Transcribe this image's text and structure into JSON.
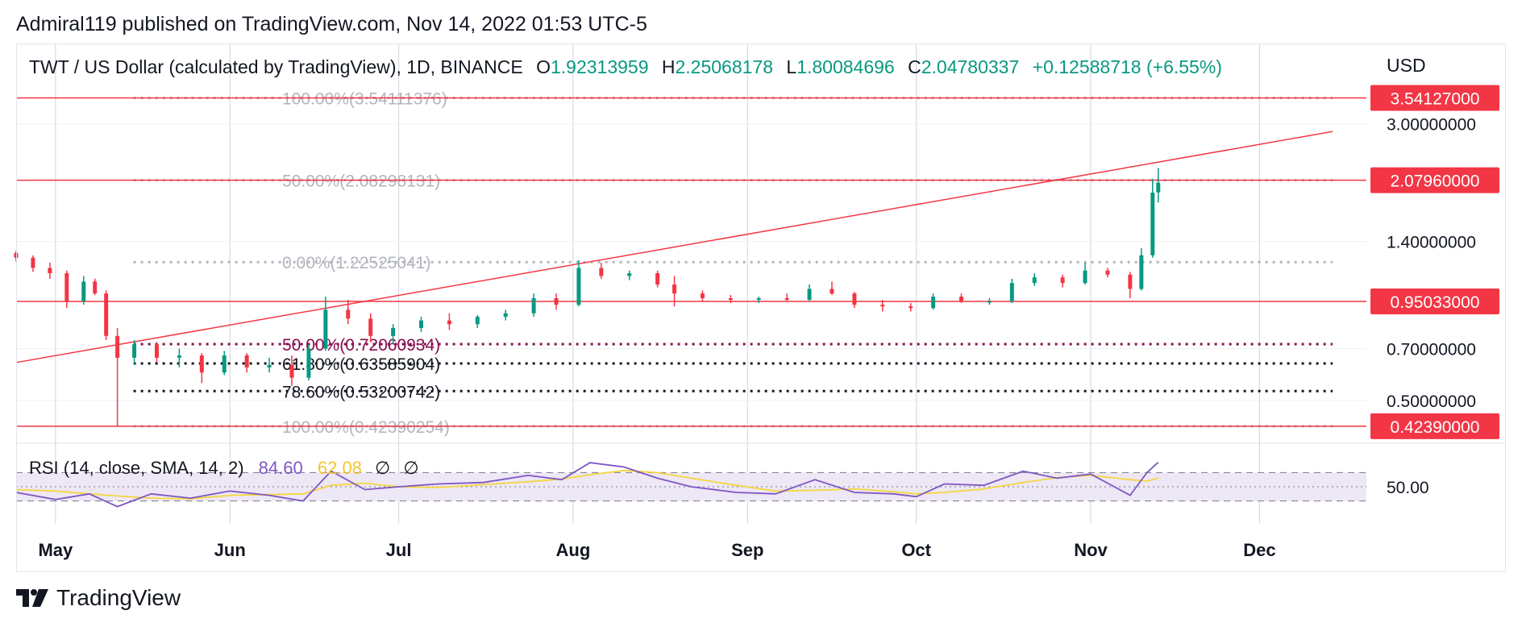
{
  "header": {
    "published_text": "Admiral119 published on TradingView.com, Nov 14, 2022 01:53 UTC-5"
  },
  "legend": {
    "symbol": "TWT / US Dollar (calculated by TradingView), 1D, BINANCE",
    "o_label": "O",
    "o_value": "1.92313959",
    "h_label": "H",
    "h_value": "2.25068178",
    "l_label": "L",
    "l_value": "1.80084696",
    "c_label": "C",
    "c_value": "2.04780337",
    "change": "+0.12588718 (+6.55%)"
  },
  "currency": "USD",
  "rsi_legend": {
    "name": "RSI (14, close, SMA, 14, 2)",
    "rsi_value": "84.60",
    "sma_value": "62.08",
    "na1": "∅",
    "na2": "∅"
  },
  "footer": {
    "brand": "TradingView"
  },
  "colors": {
    "up": "#089981",
    "down": "#f23645",
    "hline": "#f23645",
    "fib_gray": "#b2b5be",
    "fib_red": "#880e4f",
    "fib_black": "#131722",
    "rsi": "#7e57c2",
    "rsi_sma": "#f5d63d",
    "rsi_band": "#ede7f6",
    "grid": "#d1d4dc"
  },
  "chart_data": {
    "type": "candlestick",
    "price_axis": {
      "scale": "log",
      "range": [
        0.4,
        3.8
      ],
      "tick_labels": [
        "3.00000000",
        "1.40000000",
        "0.70000000",
        "0.50000000"
      ]
    },
    "time_axis": {
      "range": [
        "2022-04-24",
        "2022-12-20"
      ],
      "labels": [
        {
          "date": "2022-05-01",
          "label": "May"
        },
        {
          "date": "2022-06-01",
          "label": "Jun"
        },
        {
          "date": "2022-07-01",
          "label": "Jul"
        },
        {
          "date": "2022-08-01",
          "label": "Aug"
        },
        {
          "date": "2022-09-01",
          "label": "Sep"
        },
        {
          "date": "2022-10-01",
          "label": "Oct"
        },
        {
          "date": "2022-11-01",
          "label": "Nov"
        },
        {
          "date": "2022-12-01",
          "label": "Dec"
        }
      ]
    },
    "price_badges": [
      "3.54127000",
      "2.07960000",
      "0.95033000",
      "0.42390000"
    ],
    "horizontal_levels": [
      {
        "price": 3.54127,
        "label": "3.54127000"
      },
      {
        "price": 2.0796,
        "label": "2.07960000"
      },
      {
        "price": 0.95033,
        "label": "0.95033000"
      },
      {
        "price": 0.4239,
        "label": "0.42390000"
      }
    ],
    "trendline": {
      "from": {
        "date": "2022-04-24",
        "price": 0.64
      },
      "to": {
        "date": "2022-12-14",
        "price": 2.85
      }
    },
    "fib_upper": {
      "from_date": "2022-05-12",
      "to_date": "2022-12-14",
      "levels": [
        {
          "price": 3.54111376,
          "label": "100.00%(3.54111376)"
        },
        {
          "price": 2.08298131,
          "label": "50.00%(2.08298131)"
        },
        {
          "price": 1.22525041,
          "label": "0.00%(1.22525041)"
        }
      ]
    },
    "fib_lower": {
      "from_date": "2022-05-12",
      "to_date": "2022-12-14",
      "levels": [
        {
          "price": 0.7206,
          "label": "50.00%(0.72060934)",
          "style": "red"
        },
        {
          "price": 0.63585904,
          "label": "61.80%(0.63585904)",
          "style": "black"
        },
        {
          "price": 0.53200742,
          "label": "78.60%(0.53200742)",
          "style": "black"
        },
        {
          "price": 0.42390254,
          "label": "100.00%(0.42390254)",
          "style": "gray"
        }
      ]
    },
    "candles": [
      {
        "date": "2022-04-24",
        "open": 1.3,
        "high": 1.32,
        "low": 1.23,
        "close": 1.26
      },
      {
        "date": "2022-04-27",
        "open": 1.26,
        "high": 1.28,
        "low": 1.15,
        "close": 1.18
      },
      {
        "date": "2022-04-30",
        "open": 1.18,
        "high": 1.22,
        "low": 1.1,
        "close": 1.14
      },
      {
        "date": "2022-05-03",
        "open": 1.14,
        "high": 1.16,
        "low": 0.91,
        "close": 0.95
      },
      {
        "date": "2022-05-06",
        "open": 0.95,
        "high": 1.12,
        "low": 0.93,
        "close": 1.08
      },
      {
        "date": "2022-05-08",
        "open": 1.08,
        "high": 1.1,
        "low": 0.99,
        "close": 1.0
      },
      {
        "date": "2022-05-10",
        "open": 1.0,
        "high": 1.02,
        "low": 0.74,
        "close": 0.76
      },
      {
        "date": "2022-05-12",
        "open": 0.76,
        "high": 0.8,
        "low": 0.424,
        "close": 0.66
      },
      {
        "date": "2022-05-15",
        "open": 0.66,
        "high": 0.74,
        "low": 0.63,
        "close": 0.72
      },
      {
        "date": "2022-05-19",
        "open": 0.72,
        "high": 0.73,
        "low": 0.64,
        "close": 0.66
      },
      {
        "date": "2022-05-23",
        "open": 0.66,
        "high": 0.7,
        "low": 0.62,
        "close": 0.67
      },
      {
        "date": "2022-05-27",
        "open": 0.67,
        "high": 0.68,
        "low": 0.56,
        "close": 0.6
      },
      {
        "date": "2022-05-31",
        "open": 0.6,
        "high": 0.69,
        "low": 0.59,
        "close": 0.67
      },
      {
        "date": "2022-06-04",
        "open": 0.67,
        "high": 0.68,
        "low": 0.6,
        "close": 0.62
      },
      {
        "date": "2022-06-08",
        "open": 0.62,
        "high": 0.66,
        "low": 0.6,
        "close": 0.63
      },
      {
        "date": "2022-06-12",
        "open": 0.63,
        "high": 0.67,
        "low": 0.55,
        "close": 0.58
      },
      {
        "date": "2022-06-15",
        "open": 0.58,
        "high": 0.72,
        "low": 0.57,
        "close": 0.7
      },
      {
        "date": "2022-06-18",
        "open": 0.7,
        "high": 0.98,
        "low": 0.69,
        "close": 0.9
      },
      {
        "date": "2022-06-22",
        "open": 0.9,
        "high": 0.96,
        "low": 0.82,
        "close": 0.85
      },
      {
        "date": "2022-06-26",
        "open": 0.85,
        "high": 0.88,
        "low": 0.73,
        "close": 0.76
      },
      {
        "date": "2022-06-30",
        "open": 0.76,
        "high": 0.82,
        "low": 0.72,
        "close": 0.8
      },
      {
        "date": "2022-07-05",
        "open": 0.8,
        "high": 0.86,
        "low": 0.78,
        "close": 0.84
      },
      {
        "date": "2022-07-10",
        "open": 0.84,
        "high": 0.88,
        "low": 0.79,
        "close": 0.82
      },
      {
        "date": "2022-07-15",
        "open": 0.82,
        "high": 0.87,
        "low": 0.8,
        "close": 0.86
      },
      {
        "date": "2022-07-20",
        "open": 0.86,
        "high": 0.9,
        "low": 0.84,
        "close": 0.88
      },
      {
        "date": "2022-07-25",
        "open": 0.88,
        "high": 1.0,
        "low": 0.86,
        "close": 0.97
      },
      {
        "date": "2022-07-29",
        "open": 0.97,
        "high": 1.0,
        "low": 0.9,
        "close": 0.93
      },
      {
        "date": "2022-08-02",
        "open": 0.93,
        "high": 1.24,
        "low": 0.92,
        "close": 1.18
      },
      {
        "date": "2022-08-06",
        "open": 1.18,
        "high": 1.22,
        "low": 1.1,
        "close": 1.12
      },
      {
        "date": "2022-08-11",
        "open": 1.12,
        "high": 1.16,
        "low": 1.09,
        "close": 1.14
      },
      {
        "date": "2022-08-16",
        "open": 1.14,
        "high": 1.16,
        "low": 1.04,
        "close": 1.06
      },
      {
        "date": "2022-08-19",
        "open": 1.06,
        "high": 1.12,
        "low": 0.92,
        "close": 1.0
      },
      {
        "date": "2022-08-24",
        "open": 1.0,
        "high": 1.02,
        "low": 0.95,
        "close": 0.97
      },
      {
        "date": "2022-08-29",
        "open": 0.97,
        "high": 0.99,
        "low": 0.94,
        "close": 0.96
      },
      {
        "date": "2022-09-03",
        "open": 0.96,
        "high": 0.98,
        "low": 0.94,
        "close": 0.97
      },
      {
        "date": "2022-09-08",
        "open": 0.97,
        "high": 1.0,
        "low": 0.95,
        "close": 0.96
      },
      {
        "date": "2022-09-12",
        "open": 0.96,
        "high": 1.06,
        "low": 0.95,
        "close": 1.03
      },
      {
        "date": "2022-09-16",
        "open": 1.03,
        "high": 1.08,
        "low": 0.99,
        "close": 1.0
      },
      {
        "date": "2022-09-20",
        "open": 1.0,
        "high": 1.01,
        "low": 0.91,
        "close": 0.93
      },
      {
        "date": "2022-09-25",
        "open": 0.93,
        "high": 0.96,
        "low": 0.89,
        "close": 0.92
      },
      {
        "date": "2022-09-30",
        "open": 0.92,
        "high": 0.94,
        "low": 0.89,
        "close": 0.91
      },
      {
        "date": "2022-10-04",
        "open": 0.91,
        "high": 1.0,
        "low": 0.9,
        "close": 0.98
      },
      {
        "date": "2022-10-09",
        "open": 0.98,
        "high": 1.0,
        "low": 0.94,
        "close": 0.95
      },
      {
        "date": "2022-10-14",
        "open": 0.95,
        "high": 0.97,
        "low": 0.93,
        "close": 0.95
      },
      {
        "date": "2022-10-18",
        "open": 0.95,
        "high": 1.1,
        "low": 0.94,
        "close": 1.07
      },
      {
        "date": "2022-10-22",
        "open": 1.07,
        "high": 1.14,
        "low": 1.05,
        "close": 1.11
      },
      {
        "date": "2022-10-27",
        "open": 1.11,
        "high": 1.13,
        "low": 1.04,
        "close": 1.07
      },
      {
        "date": "2022-10-31",
        "open": 1.07,
        "high": 1.22,
        "low": 1.06,
        "close": 1.16
      },
      {
        "date": "2022-11-04",
        "open": 1.16,
        "high": 1.18,
        "low": 1.11,
        "close": 1.13
      },
      {
        "date": "2022-11-08",
        "open": 1.13,
        "high": 1.15,
        "low": 0.97,
        "close": 1.03
      },
      {
        "date": "2022-11-10",
        "open": 1.03,
        "high": 1.34,
        "low": 1.02,
        "close": 1.28
      },
      {
        "date": "2022-11-12",
        "open": 1.28,
        "high": 2.1,
        "low": 1.26,
        "close": 1.92
      },
      {
        "date": "2022-11-13",
        "open": 1.92313959,
        "high": 2.25068178,
        "low": 1.80084696,
        "close": 2.04780337
      }
    ],
    "rsi": {
      "label": "RSI (14, close, SMA, 14, 2)",
      "range": [
        0,
        100
      ],
      "levels": [
        70,
        50,
        30
      ],
      "tick_labels": [
        "50.00"
      ],
      "values": [
        {
          "date": "2022-04-24",
          "rsi": 42,
          "sma": 46
        },
        {
          "date": "2022-05-01",
          "rsi": 32,
          "sma": 44
        },
        {
          "date": "2022-05-07",
          "rsi": 40,
          "sma": 40
        },
        {
          "date": "2022-05-12",
          "rsi": 22,
          "sma": 37
        },
        {
          "date": "2022-05-18",
          "rsi": 40,
          "sma": 34
        },
        {
          "date": "2022-05-25",
          "rsi": 34,
          "sma": 33
        },
        {
          "date": "2022-06-01",
          "rsi": 44,
          "sma": 38
        },
        {
          "date": "2022-06-08",
          "rsi": 38,
          "sma": 39
        },
        {
          "date": "2022-06-14",
          "rsi": 30,
          "sma": 40
        },
        {
          "date": "2022-06-19",
          "rsi": 72,
          "sma": 52
        },
        {
          "date": "2022-06-25",
          "rsi": 46,
          "sma": 55
        },
        {
          "date": "2022-07-01",
          "rsi": 50,
          "sma": 50
        },
        {
          "date": "2022-07-08",
          "rsi": 54,
          "sma": 49
        },
        {
          "date": "2022-07-16",
          "rsi": 56,
          "sma": 53
        },
        {
          "date": "2022-07-24",
          "rsi": 66,
          "sma": 57
        },
        {
          "date": "2022-07-30",
          "rsi": 60,
          "sma": 61
        },
        {
          "date": "2022-08-04",
          "rsi": 84,
          "sma": 67
        },
        {
          "date": "2022-08-10",
          "rsi": 78,
          "sma": 73
        },
        {
          "date": "2022-08-16",
          "rsi": 62,
          "sma": 70
        },
        {
          "date": "2022-08-22",
          "rsi": 50,
          "sma": 62
        },
        {
          "date": "2022-08-30",
          "rsi": 42,
          "sma": 52
        },
        {
          "date": "2022-09-06",
          "rsi": 40,
          "sma": 44
        },
        {
          "date": "2022-09-13",
          "rsi": 60,
          "sma": 45
        },
        {
          "date": "2022-09-20",
          "rsi": 42,
          "sma": 47
        },
        {
          "date": "2022-09-27",
          "rsi": 40,
          "sma": 43
        },
        {
          "date": "2022-10-01",
          "rsi": 36,
          "sma": 40
        },
        {
          "date": "2022-10-06",
          "rsi": 54,
          "sma": 42
        },
        {
          "date": "2022-10-13",
          "rsi": 52,
          "sma": 47
        },
        {
          "date": "2022-10-20",
          "rsi": 72,
          "sma": 56
        },
        {
          "date": "2022-10-26",
          "rsi": 62,
          "sma": 63
        },
        {
          "date": "2022-11-01",
          "rsi": 68,
          "sma": 66
        },
        {
          "date": "2022-11-08",
          "rsi": 38,
          "sma": 60
        },
        {
          "date": "2022-11-11",
          "rsi": 70,
          "sma": 58
        },
        {
          "date": "2022-11-13",
          "rsi": 84.6,
          "sma": 62.08
        }
      ]
    }
  }
}
